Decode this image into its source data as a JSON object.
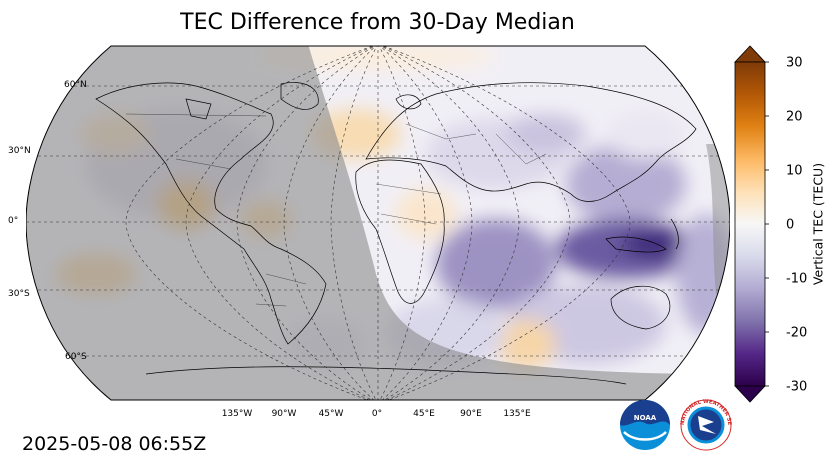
{
  "title": "TEC Difference from 30-Day Median",
  "timestamp": "2025-05-08 06:55Z",
  "colorbar": {
    "label": "Vertical TEC (TECU)",
    "min": -30,
    "max": 30,
    "ticks": [
      "30",
      "20",
      "10",
      "0",
      "-10",
      "-20",
      "-30"
    ],
    "extend": "both",
    "colormap": "PuOr_r",
    "colors": [
      "#2d004b",
      "#542788",
      "#8073ac",
      "#b2abd2",
      "#d8daeb",
      "#f7f7f7",
      "#fee0b6",
      "#fdb863",
      "#e08214",
      "#b35806",
      "#7f3b08"
    ]
  },
  "map": {
    "projection": "Robinson",
    "central_longitude": 0,
    "lat_labels": [
      "60°N",
      "30°N",
      "0°",
      "30°S",
      "60°S"
    ],
    "lon_labels": [
      "135°W",
      "90°W",
      "45°W",
      "0°",
      "45°E",
      "90°E",
      "135°E"
    ],
    "night_shading_color": "#8c8c8c",
    "features": [
      "coastlines",
      "country borders",
      "night-side shading",
      "graticule"
    ]
  },
  "logos": {
    "noaa_text": "NOAA",
    "nws_text": "NATIONAL WEATHER SERVICE"
  }
}
